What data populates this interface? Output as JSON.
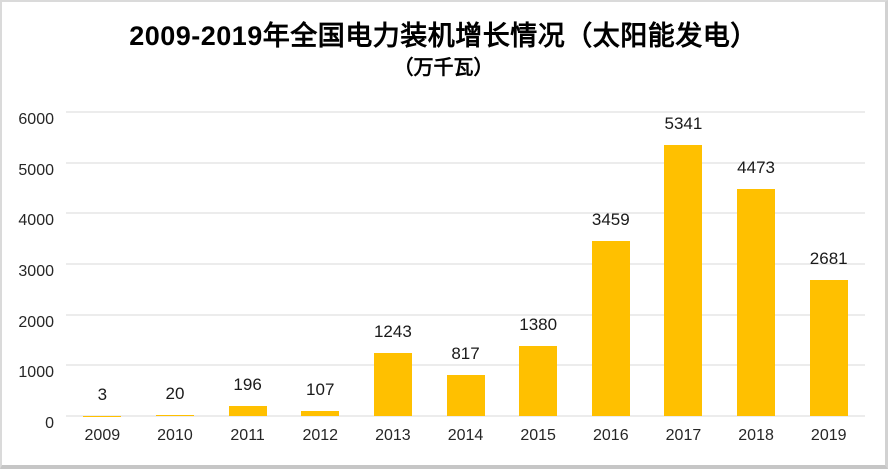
{
  "chart_data": {
    "type": "bar",
    "title": "2009-2019年全国电力装机增长情况（太阳能发电）",
    "subtitle": "（万千瓦）",
    "categories": [
      "2009",
      "2010",
      "2011",
      "2012",
      "2013",
      "2014",
      "2015",
      "2016",
      "2017",
      "2018",
      "2019"
    ],
    "values": [
      3,
      20,
      196,
      107,
      1243,
      817,
      1380,
      3459,
      5341,
      4473,
      2681
    ],
    "xlabel": "",
    "ylabel": "",
    "ylim": [
      0,
      6000
    ],
    "yticks": [
      0,
      1000,
      2000,
      3000,
      4000,
      5000,
      6000
    ],
    "grid": "horizontal",
    "legend": "none",
    "data_labels": "outside-end",
    "bar_color": "#ffc000",
    "gridline_color": "#d9d9d9",
    "text_color": "#262626",
    "title_color": "#000000",
    "background_color": "#ffffff",
    "frame_border_color": "#d2d2d2"
  }
}
